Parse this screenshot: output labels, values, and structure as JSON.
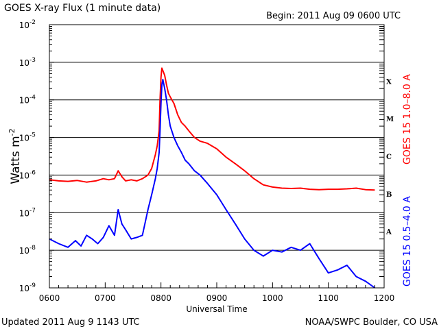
{
  "header": {
    "title": "GOES X-ray Flux (1 minute data)",
    "begin": "Begin: 2011 Aug 09 0600 UTC"
  },
  "footer": {
    "updated": "Updated 2011 Aug  9 1143 UTC",
    "credit": "NOAA/SWPC Boulder, CO USA"
  },
  "colors": {
    "long_channel": "#ff0000",
    "short_channel": "#0000ff",
    "axes": "#000000"
  },
  "chart_data": {
    "type": "line",
    "title": "GOES X-ray Flux (1 minute data)",
    "xlabel": "Universal Time",
    "ylabel": "Watts m",
    "ylabel_sup": "-2",
    "yscale": "log",
    "xlim": [
      0,
      360
    ],
    "ylim": [
      1e-09,
      0.01
    ],
    "x_unit": "minutes after 0600 UTC",
    "x_ticks": [
      {
        "x": 0,
        "label": "0600"
      },
      {
        "x": 60,
        "label": "0700"
      },
      {
        "x": 120,
        "label": "0800"
      },
      {
        "x": 180,
        "label": "0900"
      },
      {
        "x": 240,
        "label": "1000"
      },
      {
        "x": 300,
        "label": "1100"
      },
      {
        "x": 360,
        "label": "1200"
      }
    ],
    "y_ticks": [
      {
        "exp": -2,
        "base": "10",
        "sup": "-2"
      },
      {
        "exp": -3,
        "base": "10",
        "sup": "-3"
      },
      {
        "exp": -4,
        "base": "10",
        "sup": "-4"
      },
      {
        "exp": -5,
        "base": "10",
        "sup": "-5"
      },
      {
        "exp": -6,
        "base": "10",
        "sup": "-6"
      },
      {
        "exp": -7,
        "base": "10",
        "sup": "-7"
      },
      {
        "exp": -8,
        "base": "10",
        "sup": "-8"
      },
      {
        "exp": -9,
        "base": "10",
        "sup": "-9"
      }
    ],
    "flare_classes": [
      {
        "label": "X",
        "exp": -3.5
      },
      {
        "label": "M",
        "exp": -4.5
      },
      {
        "label": "C",
        "exp": -5.5
      },
      {
        "label": "B",
        "exp": -6.5
      },
      {
        "label": "A",
        "exp": -7.5
      }
    ],
    "grid": "horizontal at each decade",
    "series": [
      {
        "name": "GOES 15 1.0–8.0 A",
        "color": "#ff0000",
        "x": [
          0,
          10,
          20,
          30,
          40,
          50,
          58,
          64,
          70,
          74,
          78,
          82,
          88,
          94,
          100,
          106,
          110,
          114,
          116,
          118,
          119,
          120,
          121,
          122,
          124,
          126,
          128,
          130,
          134,
          138,
          142,
          146,
          150,
          156,
          162,
          170,
          180,
          190,
          200,
          210,
          220,
          230,
          240,
          250,
          260,
          270,
          280,
          290,
          300,
          310,
          320,
          330,
          340,
          350
        ],
        "y": [
          7.5e-07,
          7e-07,
          6.8e-07,
          7.2e-07,
          6.5e-07,
          7e-07,
          8e-07,
          7.5e-07,
          8e-07,
          1.3e-06,
          9e-07,
          7e-07,
          7.5e-07,
          7e-07,
          8e-07,
          1e-06,
          1.5e-06,
          3.5e-06,
          6e-06,
          1.5e-05,
          0.0001,
          0.0004,
          0.0007,
          0.0006,
          0.00045,
          0.00025,
          0.00015,
          0.00012,
          8e-05,
          4e-05,
          2.5e-05,
          2e-05,
          1.5e-05,
          1e-05,
          8e-06,
          7e-06,
          5e-06,
          3e-06,
          2e-06,
          1.3e-06,
          8e-07,
          5.5e-07,
          4.8e-07,
          4.5e-07,
          4.4e-07,
          4.5e-07,
          4.2e-07,
          4.1e-07,
          4.2e-07,
          4.2e-07,
          4.3e-07,
          4.5e-07,
          4.1e-07,
          4e-07
        ]
      },
      {
        "name": "GOES 15 0.5–4.0 A",
        "color": "#0000ff",
        "x": [
          0,
          10,
          20,
          28,
          34,
          40,
          46,
          52,
          58,
          64,
          70,
          74,
          78,
          82,
          88,
          94,
          100,
          106,
          110,
          114,
          116,
          118,
          119,
          120,
          121,
          122,
          124,
          126,
          128,
          130,
          134,
          138,
          142,
          146,
          150,
          156,
          162,
          170,
          180,
          190,
          200,
          210,
          220,
          230,
          240,
          250,
          260,
          270,
          280,
          290,
          300,
          310,
          320,
          330,
          340,
          350
        ],
        "y": [
          2e-08,
          1.5e-08,
          1.2e-08,
          1.8e-08,
          1.3e-08,
          2.5e-08,
          2e-08,
          1.5e-08,
          2.2e-08,
          4.5e-08,
          2.5e-08,
          1.2e-07,
          5e-08,
          3.5e-08,
          2e-08,
          2.2e-08,
          2.5e-08,
          1.2e-07,
          3e-07,
          8e-07,
          1.5e-06,
          4e-06,
          1.5e-05,
          8e-05,
          0.00025,
          0.00035,
          0.0002,
          0.0001,
          4e-05,
          2e-05,
          1e-05,
          6e-06,
          4e-06,
          2.5e-06,
          2e-06,
          1.3e-06,
          1e-06,
          6e-07,
          3e-07,
          1.2e-07,
          5e-08,
          2e-08,
          1e-08,
          7e-09,
          1e-08,
          9e-09,
          1.2e-08,
          1e-08,
          1.5e-08,
          6e-09,
          2.5e-09,
          3e-09,
          4e-09,
          2e-09,
          1.5e-09,
          1e-09
        ]
      }
    ]
  }
}
